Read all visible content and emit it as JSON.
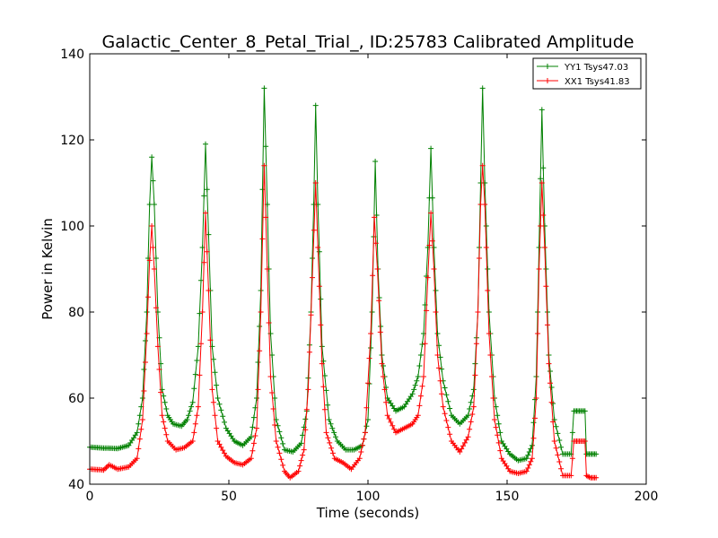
{
  "chart_data": {
    "type": "line",
    "title": "Galactic_Center_8_Petal_Trial_, ID:25783 Calibrated Amplitude",
    "xlabel": "Time (seconds)",
    "ylabel": "Power in Kelvin",
    "xlim": [
      0,
      200
    ],
    "ylim": [
      40,
      140
    ],
    "xticks": [
      0,
      50,
      100,
      150,
      200
    ],
    "yticks": [
      40,
      60,
      80,
      100,
      120,
      140
    ],
    "grid": false,
    "legend_position": "top-right",
    "marker": "plus",
    "series": [
      {
        "name": "YY1 Tsys47.03",
        "color": "#008000",
        "points": [
          [
            0,
            48.6
          ],
          [
            5,
            48.4
          ],
          [
            10,
            48.3
          ],
          [
            14,
            49
          ],
          [
            17,
            52
          ],
          [
            19,
            60
          ],
          [
            20.5,
            80
          ],
          [
            21.5,
            105
          ],
          [
            22.3,
            116
          ],
          [
            23.2,
            105
          ],
          [
            24.5,
            80
          ],
          [
            26,
            62
          ],
          [
            28,
            56
          ],
          [
            30,
            54
          ],
          [
            33,
            53.5
          ],
          [
            35,
            55
          ],
          [
            37,
            59
          ],
          [
            39,
            72
          ],
          [
            40.5,
            95
          ],
          [
            41.6,
            119
          ],
          [
            42.7,
            98
          ],
          [
            44,
            72
          ],
          [
            46,
            60
          ],
          [
            49,
            53
          ],
          [
            52,
            50
          ],
          [
            55,
            49
          ],
          [
            58,
            51
          ],
          [
            60,
            60
          ],
          [
            61.5,
            85
          ],
          [
            62.7,
            132
          ],
          [
            63.8,
            105
          ],
          [
            65,
            75
          ],
          [
            67,
            55
          ],
          [
            70,
            48
          ],
          [
            73,
            47.5
          ],
          [
            76,
            49.5
          ],
          [
            78,
            57
          ],
          [
            79.5,
            80
          ],
          [
            80.5,
            105
          ],
          [
            81.2,
            128
          ],
          [
            82,
            105
          ],
          [
            83.5,
            72
          ],
          [
            86,
            55
          ],
          [
            89,
            50
          ],
          [
            92,
            48
          ],
          [
            95,
            48
          ],
          [
            98,
            49
          ],
          [
            100,
            55
          ],
          [
            101.5,
            80
          ],
          [
            102.6,
            115
          ],
          [
            103.6,
            90
          ],
          [
            105,
            70
          ],
          [
            107,
            60
          ],
          [
            110,
            57
          ],
          [
            113,
            58
          ],
          [
            116,
            61
          ],
          [
            118,
            65
          ],
          [
            120,
            75
          ],
          [
            121.5,
            95
          ],
          [
            122.6,
            118
          ],
          [
            123.7,
            95
          ],
          [
            125,
            75
          ],
          [
            127,
            64
          ],
          [
            130,
            56
          ],
          [
            133,
            54
          ],
          [
            136,
            56
          ],
          [
            138,
            62
          ],
          [
            139.5,
            80
          ],
          [
            140.5,
            110
          ],
          [
            141.2,
            132
          ],
          [
            142,
            110
          ],
          [
            143.5,
            80
          ],
          [
            145.5,
            60
          ],
          [
            148,
            50
          ],
          [
            151,
            47
          ],
          [
            154,
            45.5
          ],
          [
            157,
            46
          ],
          [
            159,
            49
          ],
          [
            160.5,
            65
          ],
          [
            161.5,
            95
          ],
          [
            162.5,
            127
          ],
          [
            163.5,
            100
          ],
          [
            165,
            70
          ],
          [
            167,
            55
          ],
          [
            170,
            47
          ],
          [
            173,
            47
          ],
          [
            174,
            57
          ],
          [
            176,
            57
          ],
          [
            178,
            57
          ],
          [
            178.5,
            47
          ],
          [
            180,
            47
          ],
          [
            182,
            47
          ]
        ]
      },
      {
        "name": "XX1 Tsys41.83",
        "color": "#ff0000",
        "points": [
          [
            0,
            43.5
          ],
          [
            5,
            43.3
          ],
          [
            7,
            44.5
          ],
          [
            10,
            43.5
          ],
          [
            14,
            44
          ],
          [
            17,
            46
          ],
          [
            19,
            55
          ],
          [
            20.5,
            75
          ],
          [
            21.5,
            92
          ],
          [
            22.3,
            100
          ],
          [
            23.2,
            90
          ],
          [
            24.5,
            72
          ],
          [
            26,
            56
          ],
          [
            28,
            50
          ],
          [
            31,
            48
          ],
          [
            34,
            48.5
          ],
          [
            37,
            50
          ],
          [
            39,
            58
          ],
          [
            40.5,
            80
          ],
          [
            41.6,
            103
          ],
          [
            42.7,
            85
          ],
          [
            44,
            62
          ],
          [
            46,
            50
          ],
          [
            49,
            46.5
          ],
          [
            52,
            45
          ],
          [
            55,
            44.5
          ],
          [
            58,
            46
          ],
          [
            60,
            53
          ],
          [
            61.5,
            80
          ],
          [
            62.7,
            114
          ],
          [
            63.8,
            90
          ],
          [
            65,
            65
          ],
          [
            67,
            50
          ],
          [
            70,
            43
          ],
          [
            72,
            41.5
          ],
          [
            75,
            43
          ],
          [
            77,
            48
          ],
          [
            78.5,
            62
          ],
          [
            80,
            88
          ],
          [
            81.2,
            110
          ],
          [
            82,
            95
          ],
          [
            83.5,
            68
          ],
          [
            85,
            52
          ],
          [
            88,
            46
          ],
          [
            91,
            45
          ],
          [
            94,
            43.5
          ],
          [
            97,
            46
          ],
          [
            99,
            52
          ],
          [
            101,
            75
          ],
          [
            102.3,
            102
          ],
          [
            103.4,
            90
          ],
          [
            105,
            68
          ],
          [
            107,
            56
          ],
          [
            110,
            52
          ],
          [
            113,
            53
          ],
          [
            116,
            54
          ],
          [
            118,
            56
          ],
          [
            120,
            65
          ],
          [
            121.5,
            88
          ],
          [
            122.6,
            103
          ],
          [
            123.7,
            90
          ],
          [
            125,
            70
          ],
          [
            127,
            58
          ],
          [
            130,
            50
          ],
          [
            133,
            47.5
          ],
          [
            136,
            51
          ],
          [
            138,
            58
          ],
          [
            139.5,
            80
          ],
          [
            140.5,
            105
          ],
          [
            141.2,
            114
          ],
          [
            142,
            105
          ],
          [
            143.5,
            75
          ],
          [
            145.5,
            55
          ],
          [
            148,
            46
          ],
          [
            151,
            43
          ],
          [
            154,
            42.5
          ],
          [
            157,
            43
          ],
          [
            159,
            46
          ],
          [
            160.5,
            60
          ],
          [
            161.5,
            90
          ],
          [
            162.5,
            110
          ],
          [
            163.5,
            95
          ],
          [
            165,
            68
          ],
          [
            167,
            50
          ],
          [
            170,
            42
          ],
          [
            173,
            42
          ],
          [
            174,
            50
          ],
          [
            176,
            50
          ],
          [
            178,
            50
          ],
          [
            178.5,
            42
          ],
          [
            180,
            41.5
          ],
          [
            182,
            41.5
          ]
        ]
      }
    ]
  }
}
